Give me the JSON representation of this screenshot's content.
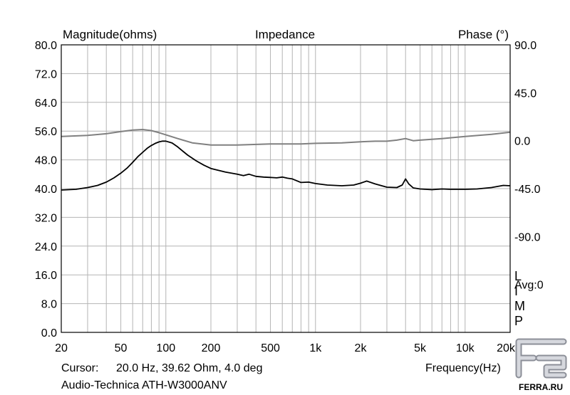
{
  "chart_data": {
    "type": "line",
    "title": "Impedance",
    "left_axis_label": "Magnitude(ohms)",
    "right_axis_label": "Phase (°)",
    "xlabel": "Frequency(Hz)",
    "x_scale": "log",
    "xlim": [
      20,
      20000
    ],
    "ylim_left": [
      0,
      80
    ],
    "ylim_right": [
      -180,
      90
    ],
    "x_ticks": [
      {
        "value": 20,
        "label": "20"
      },
      {
        "value": 50,
        "label": "50"
      },
      {
        "value": 100,
        "label": "100"
      },
      {
        "value": 200,
        "label": "200"
      },
      {
        "value": 500,
        "label": "500"
      },
      {
        "value": 1000,
        "label": "1k"
      },
      {
        "value": 2000,
        "label": "2k"
      },
      {
        "value": 5000,
        "label": "5k"
      },
      {
        "value": 10000,
        "label": "10k"
      },
      {
        "value": 20000,
        "label": "20k"
      }
    ],
    "left_ticks": [
      {
        "value": 80,
        "label": "80.0"
      },
      {
        "value": 72,
        "label": "72.0"
      },
      {
        "value": 64,
        "label": "64.0"
      },
      {
        "value": 56,
        "label": "56.0"
      },
      {
        "value": 48,
        "label": "48.0"
      },
      {
        "value": 40,
        "label": "40.0"
      },
      {
        "value": 32,
        "label": "32.0"
      },
      {
        "value": 24,
        "label": "24.0"
      },
      {
        "value": 16,
        "label": "16.0"
      },
      {
        "value": 8,
        "label": "8.0"
      },
      {
        "value": 0,
        "label": "0.0"
      }
    ],
    "right_ticks": [
      {
        "value": 90,
        "label": "90.0"
      },
      {
        "value": 45,
        "label": "45.0"
      },
      {
        "value": 0,
        "label": "0.0"
      },
      {
        "value": -45,
        "label": "-45.0"
      },
      {
        "value": -90,
        "label": "-90.0"
      }
    ],
    "right_annotations": [
      {
        "value": -135,
        "label": "Avg:0"
      }
    ],
    "side_letters": [
      "L",
      "I",
      "M",
      "P"
    ],
    "series": [
      {
        "name": "Impedance magnitude",
        "axis": "left",
        "color": "#000000",
        "points": [
          [
            20,
            39.6
          ],
          [
            25,
            39.8
          ],
          [
            30,
            40.3
          ],
          [
            35,
            40.9
          ],
          [
            40,
            41.8
          ],
          [
            45,
            43.0
          ],
          [
            50,
            44.3
          ],
          [
            55,
            45.7
          ],
          [
            60,
            47.3
          ],
          [
            65,
            48.9
          ],
          [
            70,
            50.1
          ],
          [
            75,
            51.2
          ],
          [
            80,
            52.0
          ],
          [
            85,
            52.6
          ],
          [
            90,
            53.0
          ],
          [
            95,
            53.2
          ],
          [
            100,
            53.2
          ],
          [
            110,
            52.7
          ],
          [
            120,
            51.6
          ],
          [
            130,
            50.4
          ],
          [
            140,
            49.3
          ],
          [
            160,
            47.7
          ],
          [
            180,
            46.5
          ],
          [
            200,
            45.6
          ],
          [
            250,
            44.6
          ],
          [
            300,
            44.0
          ],
          [
            330,
            43.6
          ],
          [
            360,
            44.0
          ],
          [
            400,
            43.4
          ],
          [
            450,
            43.2
          ],
          [
            500,
            43.1
          ],
          [
            550,
            43.0
          ],
          [
            600,
            43.2
          ],
          [
            650,
            42.9
          ],
          [
            700,
            42.7
          ],
          [
            800,
            41.7
          ],
          [
            900,
            41.8
          ],
          [
            1000,
            41.4
          ],
          [
            1200,
            41.0
          ],
          [
            1500,
            40.8
          ],
          [
            1800,
            41.0
          ],
          [
            2000,
            41.5
          ],
          [
            2200,
            42.1
          ],
          [
            2500,
            41.3
          ],
          [
            3000,
            40.4
          ],
          [
            3500,
            40.3
          ],
          [
            3800,
            41.0
          ],
          [
            4000,
            42.7
          ],
          [
            4200,
            41.3
          ],
          [
            4500,
            40.2
          ],
          [
            5000,
            39.9
          ],
          [
            6000,
            39.7
          ],
          [
            7000,
            39.9
          ],
          [
            8000,
            39.8
          ],
          [
            10000,
            39.8
          ],
          [
            12000,
            39.9
          ],
          [
            15000,
            40.3
          ],
          [
            18000,
            40.9
          ],
          [
            20000,
            40.8
          ]
        ]
      },
      {
        "name": "Phase",
        "axis": "right",
        "color": "#808080",
        "points": [
          [
            20,
            4.0
          ],
          [
            30,
            5.0
          ],
          [
            40,
            6.5
          ],
          [
            50,
            8.5
          ],
          [
            60,
            10.0
          ],
          [
            70,
            10.5
          ],
          [
            80,
            9.5
          ],
          [
            90,
            7.5
          ],
          [
            100,
            5.5
          ],
          [
            120,
            2.0
          ],
          [
            150,
            -2.0
          ],
          [
            200,
            -4.0
          ],
          [
            300,
            -4.0
          ],
          [
            500,
            -3.0
          ],
          [
            800,
            -3.0
          ],
          [
            1000,
            -2.5
          ],
          [
            1500,
            -2.0
          ],
          [
            2000,
            -1.0
          ],
          [
            2500,
            -0.5
          ],
          [
            3000,
            -0.5
          ],
          [
            3500,
            0.5
          ],
          [
            4000,
            2.0
          ],
          [
            4500,
            0.0
          ],
          [
            5000,
            0.5
          ],
          [
            7000,
            2.0
          ],
          [
            10000,
            4.0
          ],
          [
            15000,
            6.0
          ],
          [
            20000,
            8.0
          ]
        ]
      }
    ]
  },
  "footer": {
    "cursor_label": "Cursor:",
    "cursor_value": "20.0 Hz, 39.62 Ohm, 4.0 deg",
    "device": "Audio-Technica ATH-W3000ANV"
  },
  "watermark": {
    "text": "FERRA.RU",
    "fill_color": "#a8abb4"
  }
}
